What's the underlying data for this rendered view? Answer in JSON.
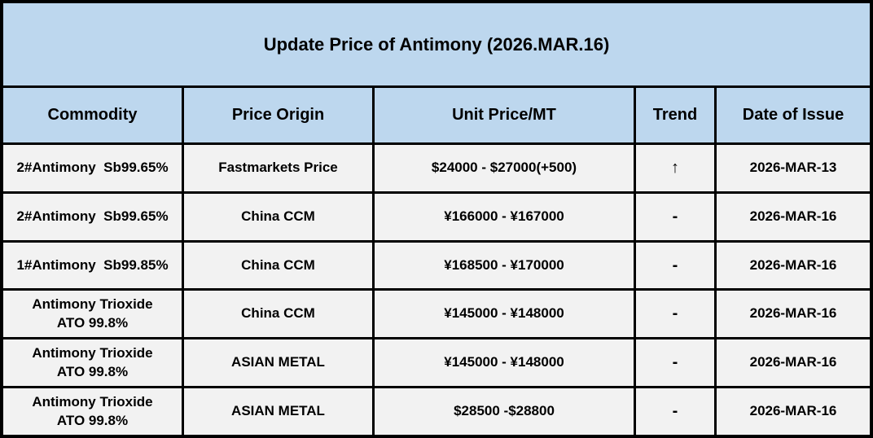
{
  "title": "Update Price of Antimony (2026.MAR.16)",
  "colors": {
    "header_bg": "#BDD7EE",
    "row_bg": "#F2F2F2",
    "border": "#000000",
    "text": "#000000"
  },
  "table": {
    "columns": [
      "Commodity",
      "Price Origin",
      "Unit Price/MT",
      "Trend",
      "Date of Issue"
    ],
    "rows": [
      {
        "commodity": "2#Antimony  Sb99.65%",
        "origin": "Fastmarkets Price",
        "price": "$24000 - $27000(+500)",
        "trend": "↑",
        "date": "2026-MAR-13"
      },
      {
        "commodity": "2#Antimony  Sb99.65%",
        "origin": "China CCM",
        "price": "¥166000 - ¥167000",
        "trend": "-",
        "date": "2026-MAR-16"
      },
      {
        "commodity": "1#Antimony  Sb99.85%",
        "origin": "China CCM",
        "price": "¥168500 - ¥170000",
        "trend": "-",
        "date": "2026-MAR-16"
      },
      {
        "commodity": "Antimony Trioxide\nATO 99.8%",
        "origin": "China CCM",
        "price": "¥145000 - ¥148000",
        "trend": "-",
        "date": "2026-MAR-16"
      },
      {
        "commodity": "Antimony Trioxide\nATO 99.8%",
        "origin": "ASIAN METAL",
        "price": "¥145000 - ¥148000",
        "trend": "-",
        "date": "2026-MAR-16"
      },
      {
        "commodity": "Antimony Trioxide\nATO 99.8%",
        "origin": "ASIAN METAL",
        "price": "$28500 -$28800",
        "trend": "-",
        "date": "2026-MAR-16"
      }
    ]
  }
}
